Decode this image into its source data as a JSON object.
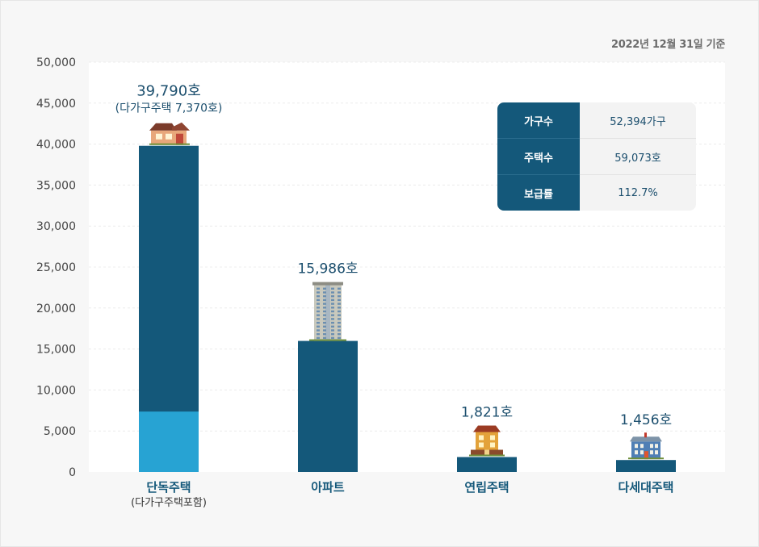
{
  "date_note": "2022년 12월 31일 기준",
  "summary": [
    {
      "label": "가구수",
      "value": "52,394가구"
    },
    {
      "label": "주택수",
      "value": "59,073호"
    },
    {
      "label": "보급률",
      "value": "112.7%"
    }
  ],
  "colors": {
    "bar_dark": "#14587a",
    "bar_light": "#27a3d3",
    "value_label": "#1c4f6e",
    "category_label": "#14587a"
  },
  "icons": [
    "house-icon",
    "apartment-building-icon",
    "rowhouse-icon",
    "multiplex-house-icon"
  ],
  "chart_data": {
    "type": "bar",
    "title": "",
    "xlabel": "",
    "ylabel": "",
    "ylim": [
      0,
      50000
    ],
    "yticks": [
      "0",
      "5,000",
      "10,000",
      "15,000",
      "20,000",
      "25,000",
      "30,000",
      "35,000",
      "40,000",
      "45,000",
      "50,000"
    ],
    "grid": true,
    "categories": [
      {
        "label": "단독주택",
        "sublabel": "(다가구주택포함)"
      },
      {
        "label": "아파트",
        "sublabel": ""
      },
      {
        "label": "연립주택",
        "sublabel": ""
      },
      {
        "label": "다세대주택",
        "sublabel": ""
      }
    ],
    "bars": [
      {
        "total": 39790,
        "highlight": 7370,
        "label": "39,790호",
        "sublabel": "(다가구주택 7,370호)"
      },
      {
        "total": 15986,
        "label": "15,986호",
        "sublabel": ""
      },
      {
        "total": 1821,
        "label": "1,821호",
        "sublabel": ""
      },
      {
        "total": 1456,
        "label": "1,456호",
        "sublabel": ""
      }
    ]
  }
}
